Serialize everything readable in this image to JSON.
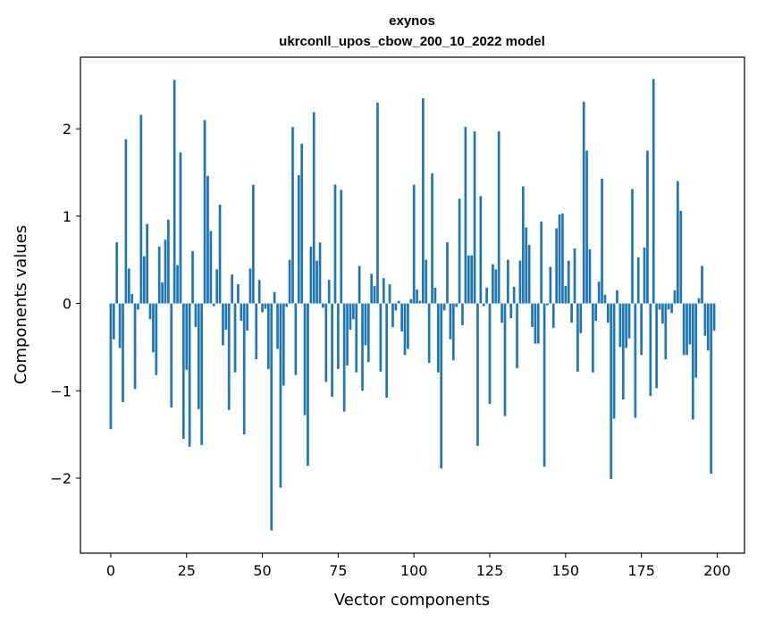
{
  "chart_data": {
    "type": "bar",
    "title_line1": "exynos",
    "title_line2": "ukrconll_upos_cbow_200_10_2022 model",
    "xlabel": "Vector components",
    "ylabel": "Components values",
    "xlim": [
      -10,
      209
    ],
    "ylim": [
      -2.86,
      2.82
    ],
    "x_ticks": [
      0,
      25,
      50,
      75,
      100,
      125,
      150,
      175,
      200
    ],
    "x_tick_labels": [
      "0",
      "25",
      "50",
      "75",
      "100",
      "125",
      "150",
      "175",
      "200"
    ],
    "y_ticks": [
      -2,
      -1,
      0,
      1,
      2
    ],
    "y_tick_labels": [
      "−2",
      "−1",
      "0",
      "1",
      "2"
    ],
    "grid": false,
    "bar_color": "#1f77b4",
    "x_start": 0,
    "values": [
      -1.44,
      -0.41,
      0.7,
      -0.51,
      -1.13,
      1.88,
      0.4,
      0.11,
      -0.98,
      -0.07,
      2.16,
      0.54,
      0.91,
      -0.18,
      -0.56,
      -0.82,
      0.65,
      0.24,
      0.73,
      0.96,
      -1.19,
      2.56,
      0.44,
      1.73,
      -1.55,
      -0.76,
      -1.64,
      0.6,
      -0.27,
      -1.21,
      -1.62,
      2.1,
      1.46,
      0.83,
      -0.03,
      0.39,
      1.13,
      -0.48,
      -0.3,
      -1.22,
      0.33,
      -0.79,
      0.22,
      -0.2,
      -1.5,
      -0.31,
      0.4,
      1.36,
      -0.64,
      0.27,
      -0.1,
      -0.06,
      -0.75,
      -2.6,
      0.13,
      -0.52,
      -2.11,
      -0.94,
      -0.04,
      0.5,
      2.02,
      -0.82,
      1.47,
      1.83,
      -1.28,
      -1.86,
      0.65,
      2.19,
      0.49,
      0.7,
      -0.05,
      -0.9,
      0.27,
      -1.07,
      1.36,
      -0.75,
      1.3,
      -1.24,
      -0.71,
      -0.3,
      -0.18,
      -0.79,
      0.43,
      -1.0,
      -0.48,
      -0.67,
      0.34,
      0.2,
      2.3,
      -0.78,
      0.29,
      -1.08,
      0.22,
      -0.27,
      -0.08,
      0.03,
      -0.32,
      -0.59,
      -0.52,
      0.05,
      1.36,
      0.16,
      0.03,
      2.35,
      0.5,
      -0.68,
      1.49,
      0.18,
      -0.79,
      -1.89,
      -0.08,
      0.7,
      -0.41,
      -0.65,
      -0.04,
      1.2,
      -0.25,
      2.02,
      0.55,
      0.55,
      1.97,
      -1.63,
      1.23,
      -0.03,
      0.18,
      -1.15,
      0.45,
      0.39,
      1.97,
      -0.22,
      -1.29,
      0.5,
      -0.17,
      0.19,
      -0.74,
      0.49,
      1.34,
      0.87,
      0.67,
      -0.27,
      -0.46,
      -0.46,
      0.94,
      -1.87,
      -0.02,
      0.42,
      -0.28,
      0.86,
      1.02,
      1.03,
      0.2,
      0.49,
      -0.22,
      0.63,
      -0.78,
      -0.34,
      2.31,
      1.75,
      0.62,
      -0.79,
      -0.2,
      0.25,
      1.43,
      0.1,
      -0.22,
      -2.01,
      -1.32,
      0.15,
      -0.5,
      -1.1,
      -0.51,
      -0.4,
      1.31,
      -1.31,
      0.53,
      -0.59,
      0.64,
      1.75,
      -1.06,
      2.57,
      -0.97,
      -0.07,
      -0.23,
      -0.64,
      -0.07,
      -0.11,
      0.15,
      1.4,
      1.06,
      -0.59,
      -0.59,
      -0.47,
      -1.33,
      -0.85,
      0.06,
      0.43,
      -0.37,
      -0.54,
      -1.95,
      -0.31
    ]
  }
}
